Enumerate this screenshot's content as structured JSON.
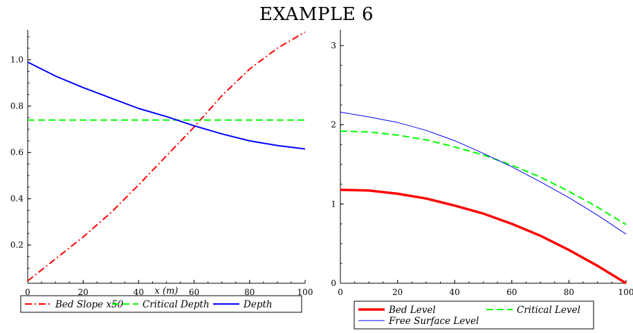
{
  "title": "EXAMPLE 6",
  "chart_data": [
    {
      "type": "line",
      "xlabel": "x (m)",
      "ylabel": "",
      "xlim": [
        0,
        100
      ],
      "ylim": [
        0.035,
        1.13
      ],
      "xticks": [
        "0",
        "20",
        "40",
        "60",
        "80",
        "100"
      ],
      "yticks": [
        "0.2",
        "0.4",
        "0.6",
        "0.8",
        "1.0"
      ],
      "legend_position": "bottom",
      "series": [
        {
          "name": "Bed Slope x50",
          "color": "#ff0000",
          "style": "dash-dot",
          "x": [
            0,
            10,
            20,
            30,
            40,
            50,
            60,
            70,
            80,
            90,
            100
          ],
          "y": [
            0.045,
            0.14,
            0.235,
            0.34,
            0.46,
            0.585,
            0.71,
            0.845,
            0.96,
            1.05,
            1.12
          ]
        },
        {
          "name": "Critical Depth",
          "color": "#00ff00",
          "style": "dash",
          "x": [
            0,
            100
          ],
          "y": [
            0.74,
            0.74
          ]
        },
        {
          "name": "Depth",
          "color": "#0000ff",
          "style": "solid",
          "x": [
            0,
            10,
            20,
            30,
            40,
            50,
            60,
            70,
            80,
            90,
            100
          ],
          "y": [
            0.99,
            0.93,
            0.88,
            0.835,
            0.79,
            0.755,
            0.715,
            0.68,
            0.65,
            0.63,
            0.615
          ]
        }
      ]
    },
    {
      "type": "line",
      "xlabel": "",
      "ylabel": "",
      "xlim": [
        0,
        100
      ],
      "ylim": [
        0,
        3.2
      ],
      "xticks": [
        "0",
        "20",
        "40",
        "60",
        "80",
        "100"
      ],
      "yticks": [
        "0",
        "1",
        "2",
        "3"
      ],
      "legend_position": "bottom",
      "series": [
        {
          "name": "Bed Level",
          "color": "#ff0000",
          "style": "solid-thick",
          "x": [
            0,
            10,
            20,
            30,
            40,
            50,
            60,
            70,
            80,
            90,
            100
          ],
          "y": [
            1.18,
            1.17,
            1.13,
            1.07,
            0.98,
            0.88,
            0.75,
            0.6,
            0.42,
            0.22,
            0.0
          ]
        },
        {
          "name": "Critical Level",
          "color": "#00ff00",
          "style": "dash",
          "x": [
            0,
            10,
            20,
            30,
            40,
            50,
            60,
            70,
            80,
            90,
            100
          ],
          "y": [
            1.92,
            1.91,
            1.87,
            1.81,
            1.72,
            1.62,
            1.49,
            1.34,
            1.16,
            0.96,
            0.74
          ]
        },
        {
          "name": "Free Surface  Level",
          "color": "#0000ff",
          "style": "solid-thin",
          "x": [
            0,
            10,
            20,
            30,
            40,
            50,
            60,
            70,
            80,
            90,
            100
          ],
          "y": [
            2.16,
            2.1,
            2.03,
            1.93,
            1.8,
            1.64,
            1.47,
            1.28,
            1.08,
            0.86,
            0.62
          ]
        }
      ]
    }
  ]
}
